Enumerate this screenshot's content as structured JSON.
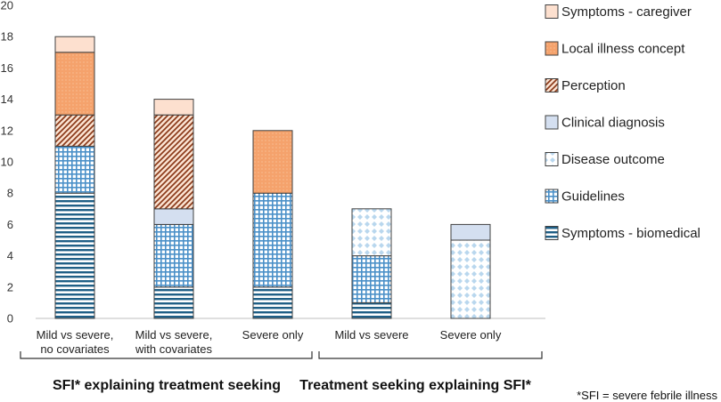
{
  "chart_data": {
    "type": "bar",
    "stacked": true,
    "ylim": [
      0,
      20
    ],
    "yticks": [
      0,
      2,
      4,
      6,
      8,
      10,
      12,
      14,
      16,
      18,
      20
    ],
    "categories": [
      [
        "Mild vs severe,",
        "no covariates"
      ],
      [
        "Mild vs severe,",
        "with covariates"
      ],
      [
        "Severe only"
      ],
      [
        "Mild vs severe"
      ],
      [
        "Severe only"
      ]
    ],
    "series": [
      {
        "name": "Symptoms - biomedical",
        "values": [
          8,
          2,
          2,
          1,
          0
        ]
      },
      {
        "name": "Guidelines",
        "values": [
          3,
          4,
          6,
          3,
          0
        ]
      },
      {
        "name": "Disease outcome",
        "values": [
          0,
          0,
          0,
          3,
          5
        ]
      },
      {
        "name": "Clinical diagnosis",
        "values": [
          0,
          1,
          0,
          0,
          1
        ]
      },
      {
        "name": "Perception",
        "values": [
          2,
          6,
          0,
          0,
          0
        ]
      },
      {
        "name": "Local illness concept",
        "values": [
          4,
          0,
          4,
          0,
          0
        ]
      },
      {
        "name": "Symptoms - caregiver",
        "values": [
          1,
          1,
          0,
          0,
          0
        ]
      }
    ],
    "legend_order": [
      "Symptoms - caregiver",
      "Local illness concept",
      "Perception",
      "Clinical diagnosis",
      "Disease outcome",
      "Guidelines",
      "Symptoms - biomedical"
    ],
    "legend_position": "right",
    "groups": [
      {
        "label": "SFI* explaining treatment seeking",
        "categories": [
          0,
          1,
          2
        ]
      },
      {
        "label": "Treatment seeking explaining SFI*",
        "categories": [
          3,
          4
        ]
      }
    ],
    "footnote": "*SFI = severe febrile illness"
  },
  "colors": {
    "Symptoms - biomedical": "#1f5f86",
    "Guidelines": "#4a90c8",
    "Disease outcome": "#9cc5e6",
    "Clinical diagnosis": "#d4dff0",
    "Perception": "#8b3a1a",
    "Local illness concept": "#f5a26c",
    "Symptoms - caregiver": "#fde0cf",
    "axis": "#bfbfbf",
    "outline": "#404040"
  }
}
